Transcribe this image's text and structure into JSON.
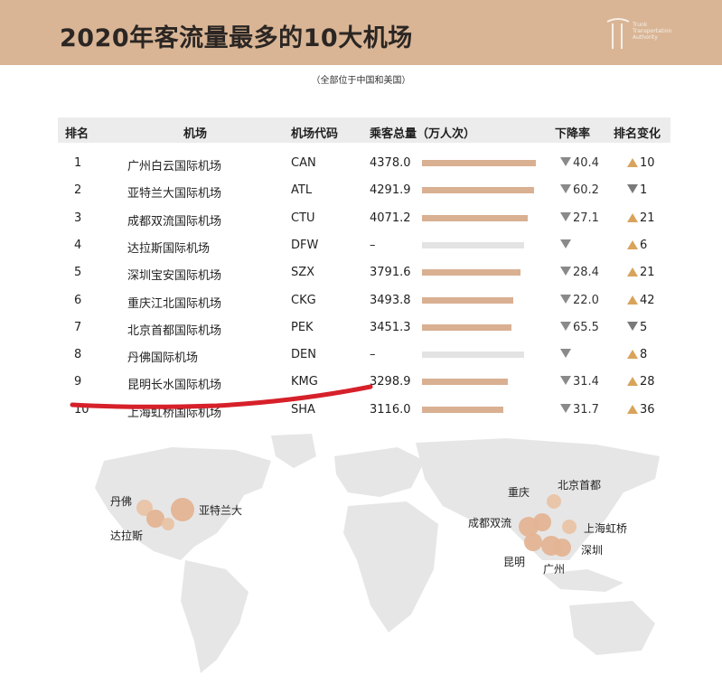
{
  "header": {
    "title": "2020年客流量最多的10大机场",
    "logo_text": "Trunk Transportation Authority"
  },
  "subtitle": "（全部位于中国和美国）",
  "table": {
    "headers": [
      "排名",
      "机场",
      "机场代码",
      "乘客总量（万人次）",
      "下降率",
      "排名变化"
    ]
  },
  "chart_data": {
    "type": "table",
    "rows": [
      {
        "rank": "1",
        "name": "广州白云国际机场",
        "code": "CAN",
        "passengers": "4378.0",
        "value": 4378.0,
        "decline": "40.4",
        "change_dir": "up",
        "change": "10"
      },
      {
        "rank": "2",
        "name": "亚特兰大国际机场",
        "code": "ATL",
        "passengers": "4291.9",
        "value": 4291.9,
        "decline": "60.2",
        "change_dir": "down",
        "change": "1"
      },
      {
        "rank": "3",
        "name": "成都双流国际机场",
        "code": "CTU",
        "passengers": "4071.2",
        "value": 4071.2,
        "decline": "27.1",
        "change_dir": "up",
        "change": "21"
      },
      {
        "rank": "4",
        "name": "达拉斯国际机场",
        "code": "DFW",
        "passengers": "–",
        "value": null,
        "decline": "",
        "change_dir": "up",
        "change": "6"
      },
      {
        "rank": "5",
        "name": "深圳宝安国际机场",
        "code": "SZX",
        "passengers": "3791.6",
        "value": 3791.6,
        "decline": "28.4",
        "change_dir": "up",
        "change": "21"
      },
      {
        "rank": "6",
        "name": "重庆江北国际机场",
        "code": "CKG",
        "passengers": "3493.8",
        "value": 3493.8,
        "decline": "22.0",
        "change_dir": "up",
        "change": "42"
      },
      {
        "rank": "7",
        "name": "北京首都国际机场",
        "code": "PEK",
        "passengers": "3451.3",
        "value": 3451.3,
        "decline": "65.5",
        "change_dir": "down",
        "change": "5"
      },
      {
        "rank": "8",
        "name": "丹佛国际机场",
        "code": "DEN",
        "passengers": "–",
        "value": null,
        "decline": "",
        "change_dir": "up",
        "change": "8"
      },
      {
        "rank": "9",
        "name": "昆明长水国际机场",
        "code": "KMG",
        "passengers": "3298.9",
        "value": 3298.9,
        "decline": "31.4",
        "change_dir": "up",
        "change": "28"
      },
      {
        "rank": "10",
        "name": "上海虹桥国际机场",
        "code": "SHA",
        "passengers": "3116.0",
        "value": 3116.0,
        "decline": "31.7",
        "change_dir": "up",
        "change": "36"
      }
    ],
    "bar_max": 4378.0,
    "colors": {
      "bar": "#d9b092",
      "bar_missing": "#e3e3e3",
      "up": "#d8a45c",
      "down": "#7a7a7a",
      "underline": "#d6202a"
    }
  },
  "map": {
    "cities": [
      "丹佛",
      "亚特兰大",
      "达拉斯",
      "重庆",
      "北京首都",
      "成都双流",
      "上海虹桥",
      "昆明",
      "深圳",
      "广州"
    ]
  }
}
